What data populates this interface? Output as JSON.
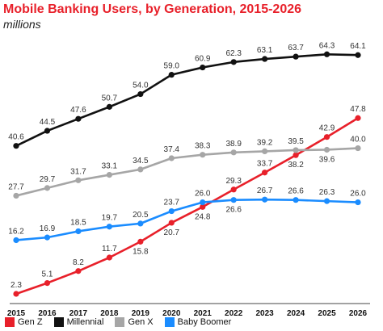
{
  "chart_data": {
    "type": "line",
    "title": "Mobile Banking Users, by Generation, 2015-2026",
    "subtitle": "millions",
    "x": [
      "2015",
      "2016",
      "2017",
      "2018",
      "2019",
      "2020",
      "2021",
      "2022",
      "2023",
      "2024",
      "2025",
      "2026"
    ],
    "ylim": [
      0,
      70
    ],
    "grid": false,
    "legend_position": "bottom",
    "series": [
      {
        "name": "Gen Z",
        "color": "#e8202a",
        "values": [
          2.3,
          5.1,
          8.2,
          11.7,
          15.8,
          20.7,
          24.8,
          29.3,
          33.7,
          38.2,
          42.9,
          47.8
        ]
      },
      {
        "name": "Millennial",
        "color": "#111111",
        "values": [
          40.6,
          44.5,
          47.6,
          50.7,
          54.0,
          59.0,
          60.9,
          62.3,
          63.1,
          63.7,
          64.3,
          64.1
        ]
      },
      {
        "name": "Gen X",
        "color": "#a6a6a6",
        "values": [
          27.7,
          29.7,
          31.7,
          33.1,
          34.5,
          37.4,
          38.3,
          38.9,
          39.2,
          39.5,
          39.6,
          40.0
        ]
      },
      {
        "name": "Baby Boomer",
        "color": "#1a8cff",
        "values": [
          16.2,
          16.9,
          18.5,
          19.7,
          20.5,
          23.7,
          26.0,
          26.6,
          26.7,
          26.6,
          26.3,
          26.0
        ]
      }
    ]
  }
}
